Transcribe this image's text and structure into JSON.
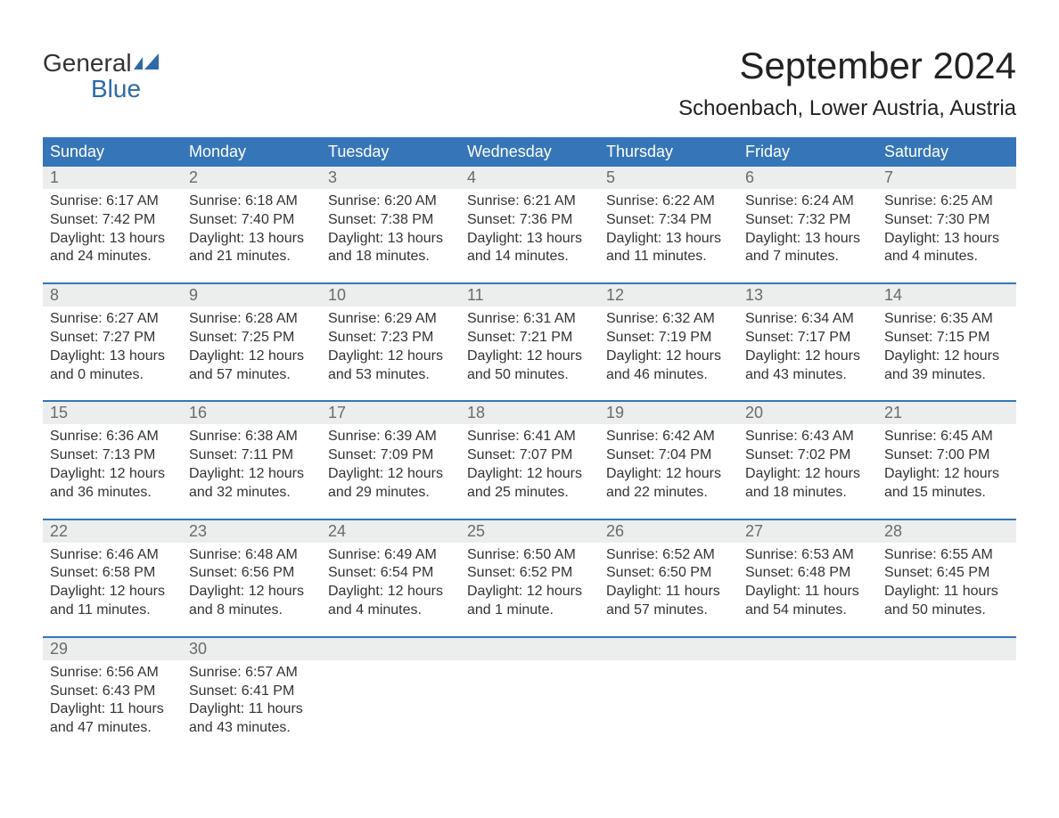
{
  "logo": {
    "word1": "General",
    "word2": "Blue"
  },
  "title": "September 2024",
  "location": "Schoenbach, Lower Austria, Austria",
  "colors": {
    "header_bg": "#3676b8",
    "header_text": "#ffffff",
    "daynum_bg": "#eceded",
    "daynum_text": "#6b6b6b",
    "body_text": "#333333",
    "page_bg": "#ffffff",
    "logo_blue": "#2d6aa8"
  },
  "fonts": {
    "title_size_pt": 32,
    "location_size_pt": 18,
    "header_size_pt": 14,
    "body_size_pt": 12
  },
  "weekdays": [
    "Sunday",
    "Monday",
    "Tuesday",
    "Wednesday",
    "Thursday",
    "Friday",
    "Saturday"
  ],
  "labels": {
    "sunrise": "Sunrise:",
    "sunset": "Sunset:",
    "daylight": "Daylight:"
  },
  "weeks": [
    [
      {
        "n": "1",
        "sr": "6:17 AM",
        "ss": "7:42 PM",
        "dl1": "13 hours",
        "dl2": "and 24 minutes."
      },
      {
        "n": "2",
        "sr": "6:18 AM",
        "ss": "7:40 PM",
        "dl1": "13 hours",
        "dl2": "and 21 minutes."
      },
      {
        "n": "3",
        "sr": "6:20 AM",
        "ss": "7:38 PM",
        "dl1": "13 hours",
        "dl2": "and 18 minutes."
      },
      {
        "n": "4",
        "sr": "6:21 AM",
        "ss": "7:36 PM",
        "dl1": "13 hours",
        "dl2": "and 14 minutes."
      },
      {
        "n": "5",
        "sr": "6:22 AM",
        "ss": "7:34 PM",
        "dl1": "13 hours",
        "dl2": "and 11 minutes."
      },
      {
        "n": "6",
        "sr": "6:24 AM",
        "ss": "7:32 PM",
        "dl1": "13 hours",
        "dl2": "and 7 minutes."
      },
      {
        "n": "7",
        "sr": "6:25 AM",
        "ss": "7:30 PM",
        "dl1": "13 hours",
        "dl2": "and 4 minutes."
      }
    ],
    [
      {
        "n": "8",
        "sr": "6:27 AM",
        "ss": "7:27 PM",
        "dl1": "13 hours",
        "dl2": "and 0 minutes."
      },
      {
        "n": "9",
        "sr": "6:28 AM",
        "ss": "7:25 PM",
        "dl1": "12 hours",
        "dl2": "and 57 minutes."
      },
      {
        "n": "10",
        "sr": "6:29 AM",
        "ss": "7:23 PM",
        "dl1": "12 hours",
        "dl2": "and 53 minutes."
      },
      {
        "n": "11",
        "sr": "6:31 AM",
        "ss": "7:21 PM",
        "dl1": "12 hours",
        "dl2": "and 50 minutes."
      },
      {
        "n": "12",
        "sr": "6:32 AM",
        "ss": "7:19 PM",
        "dl1": "12 hours",
        "dl2": "and 46 minutes."
      },
      {
        "n": "13",
        "sr": "6:34 AM",
        "ss": "7:17 PM",
        "dl1": "12 hours",
        "dl2": "and 43 minutes."
      },
      {
        "n": "14",
        "sr": "6:35 AM",
        "ss": "7:15 PM",
        "dl1": "12 hours",
        "dl2": "and 39 minutes."
      }
    ],
    [
      {
        "n": "15",
        "sr": "6:36 AM",
        "ss": "7:13 PM",
        "dl1": "12 hours",
        "dl2": "and 36 minutes."
      },
      {
        "n": "16",
        "sr": "6:38 AM",
        "ss": "7:11 PM",
        "dl1": "12 hours",
        "dl2": "and 32 minutes."
      },
      {
        "n": "17",
        "sr": "6:39 AM",
        "ss": "7:09 PM",
        "dl1": "12 hours",
        "dl2": "and 29 minutes."
      },
      {
        "n": "18",
        "sr": "6:41 AM",
        "ss": "7:07 PM",
        "dl1": "12 hours",
        "dl2": "and 25 minutes."
      },
      {
        "n": "19",
        "sr": "6:42 AM",
        "ss": "7:04 PM",
        "dl1": "12 hours",
        "dl2": "and 22 minutes."
      },
      {
        "n": "20",
        "sr": "6:43 AM",
        "ss": "7:02 PM",
        "dl1": "12 hours",
        "dl2": "and 18 minutes."
      },
      {
        "n": "21",
        "sr": "6:45 AM",
        "ss": "7:00 PM",
        "dl1": "12 hours",
        "dl2": "and 15 minutes."
      }
    ],
    [
      {
        "n": "22",
        "sr": "6:46 AM",
        "ss": "6:58 PM",
        "dl1": "12 hours",
        "dl2": "and 11 minutes."
      },
      {
        "n": "23",
        "sr": "6:48 AM",
        "ss": "6:56 PM",
        "dl1": "12 hours",
        "dl2": "and 8 minutes."
      },
      {
        "n": "24",
        "sr": "6:49 AM",
        "ss": "6:54 PM",
        "dl1": "12 hours",
        "dl2": "and 4 minutes."
      },
      {
        "n": "25",
        "sr": "6:50 AM",
        "ss": "6:52 PM",
        "dl1": "12 hours",
        "dl2": "and 1 minute."
      },
      {
        "n": "26",
        "sr": "6:52 AM",
        "ss": "6:50 PM",
        "dl1": "11 hours",
        "dl2": "and 57 minutes."
      },
      {
        "n": "27",
        "sr": "6:53 AM",
        "ss": "6:48 PM",
        "dl1": "11 hours",
        "dl2": "and 54 minutes."
      },
      {
        "n": "28",
        "sr": "6:55 AM",
        "ss": "6:45 PM",
        "dl1": "11 hours",
        "dl2": "and 50 minutes."
      }
    ],
    [
      {
        "n": "29",
        "sr": "6:56 AM",
        "ss": "6:43 PM",
        "dl1": "11 hours",
        "dl2": "and 47 minutes."
      },
      {
        "n": "30",
        "sr": "6:57 AM",
        "ss": "6:41 PM",
        "dl1": "11 hours",
        "dl2": "and 43 minutes."
      },
      null,
      null,
      null,
      null,
      null
    ]
  ]
}
